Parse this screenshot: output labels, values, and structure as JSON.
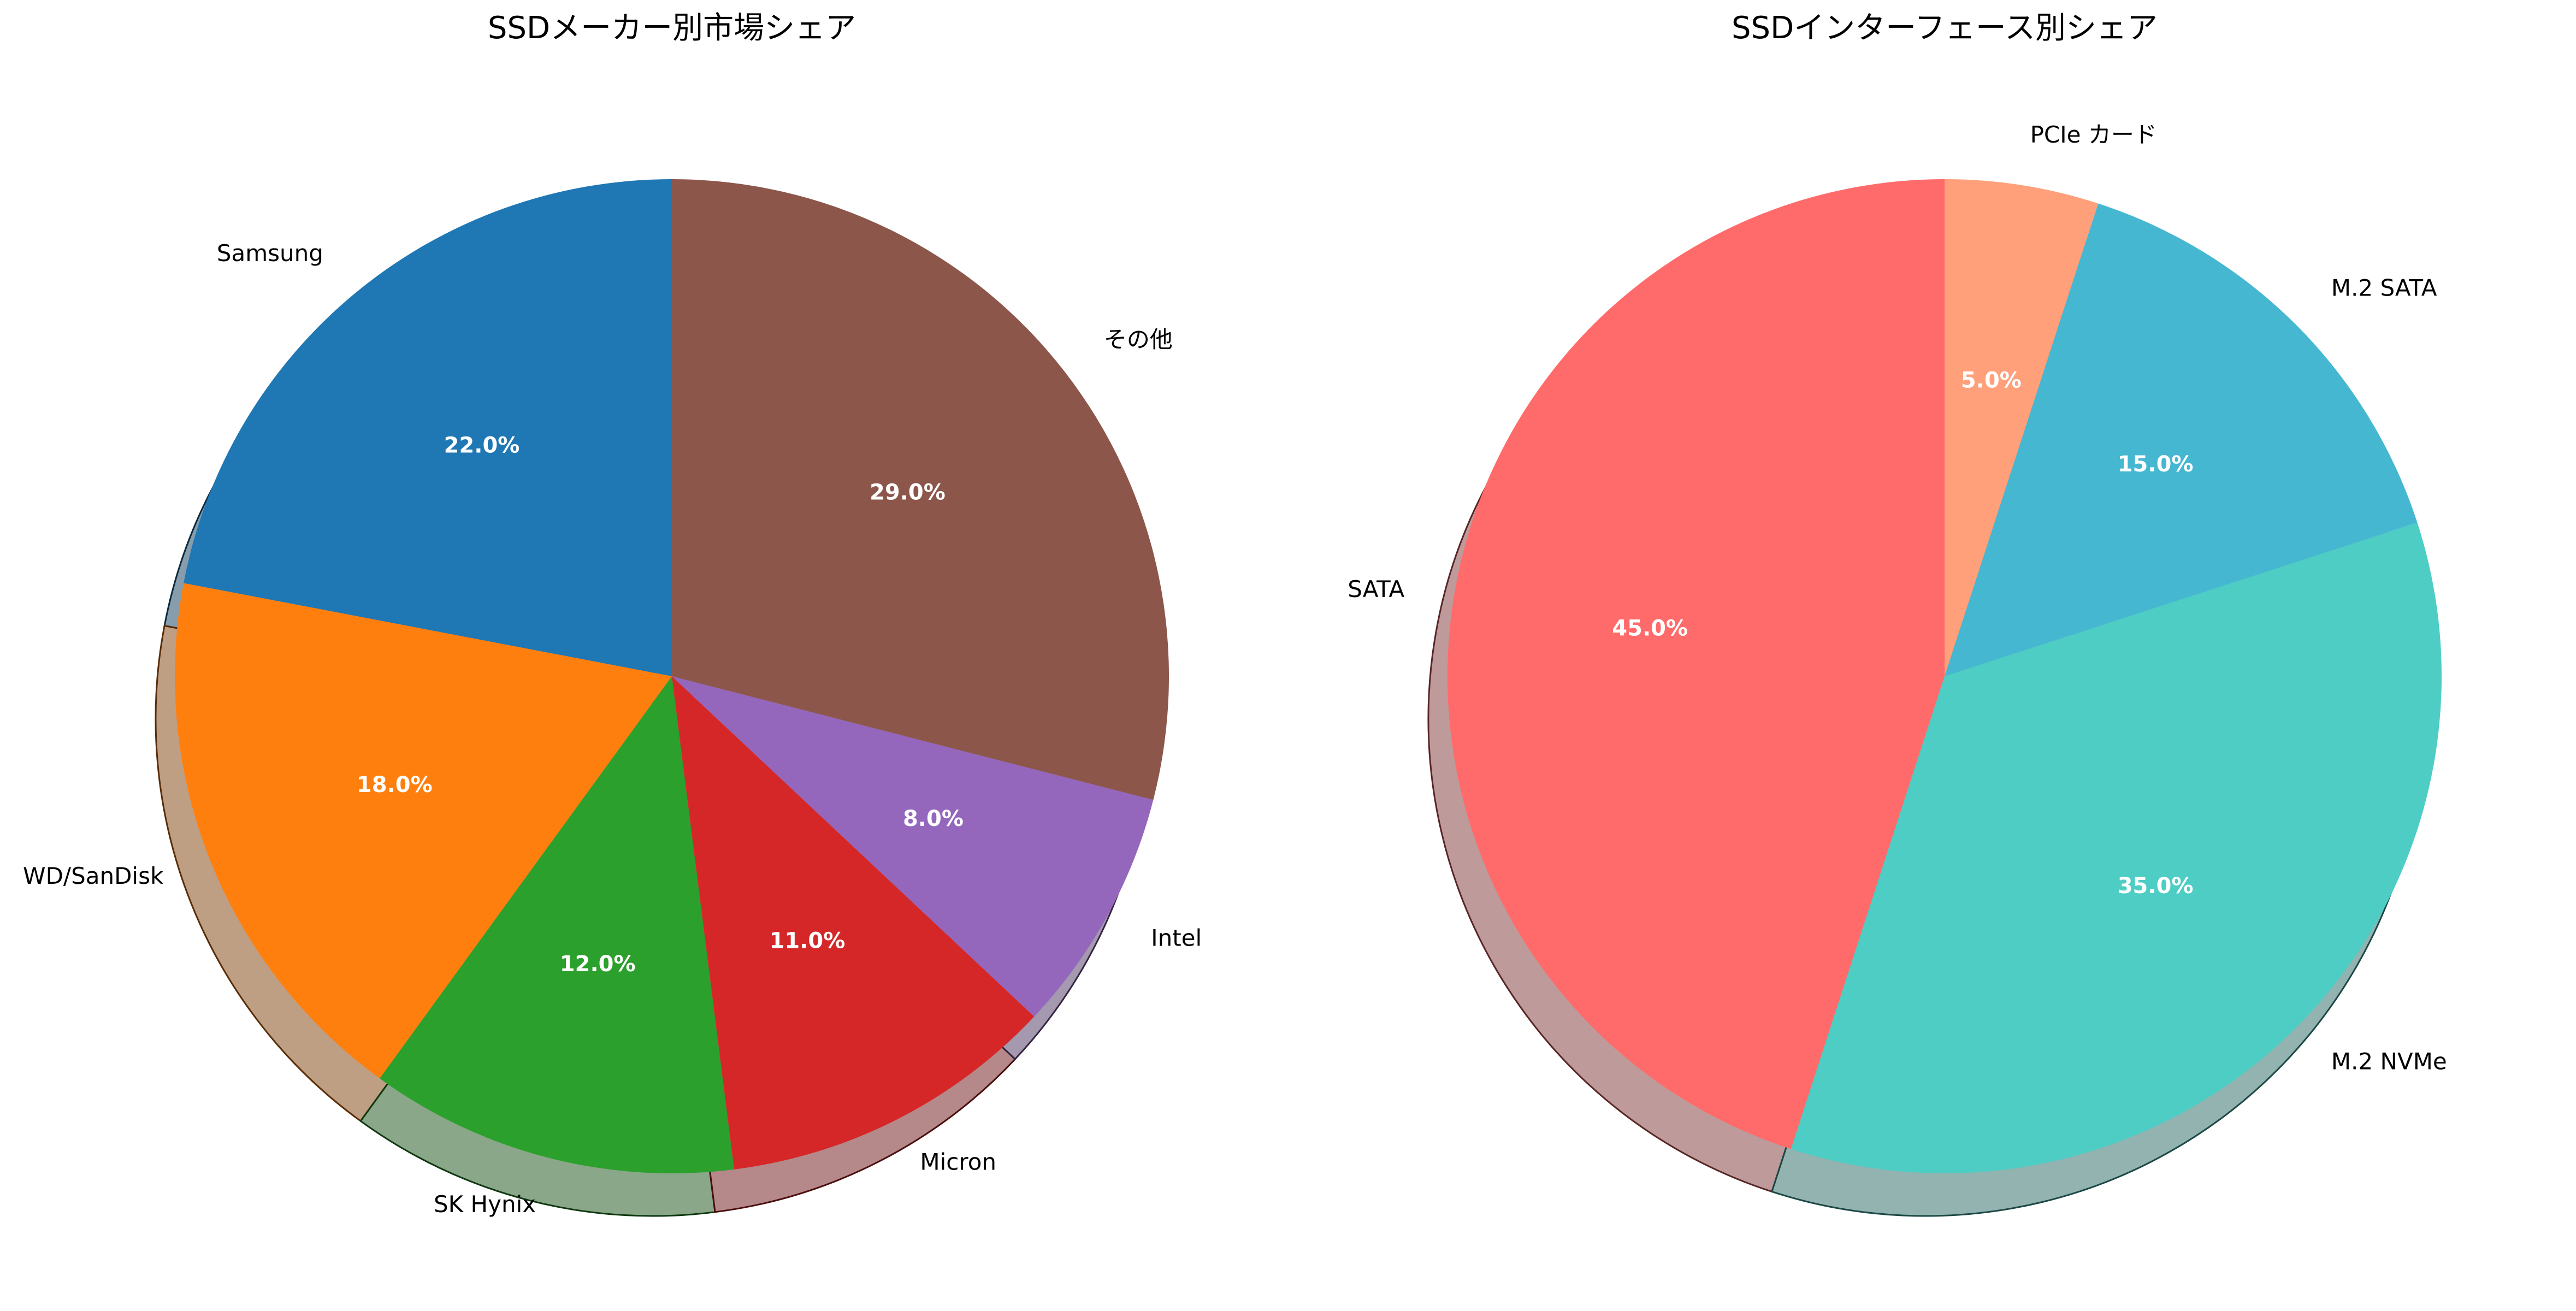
{
  "chart_data": [
    {
      "type": "pie",
      "title": "SSDメーカー別市場シェア",
      "start_angle": 90,
      "direction": "counterclockwise",
      "shadow": true,
      "slices": [
        {
          "label": "Samsung",
          "value": 22.0,
          "pct_label": "22.0%",
          "color": "#1f77b4"
        },
        {
          "label": "WD/SanDisk",
          "value": 18.0,
          "pct_label": "18.0%",
          "color": "#ff7f0e"
        },
        {
          "label": "SK Hynix",
          "value": 12.0,
          "pct_label": "12.0%",
          "color": "#2ca02c"
        },
        {
          "label": "Micron",
          "value": 11.0,
          "pct_label": "11.0%",
          "color": "#d62728"
        },
        {
          "label": "Intel",
          "value": 8.0,
          "pct_label": "8.0%",
          "color": "#9467bd"
        },
        {
          "label": "その他",
          "value": 29.0,
          "pct_label": "29.0%",
          "color": "#8c564b"
        }
      ]
    },
    {
      "type": "pie",
      "title": "SSDインターフェース別シェア",
      "start_angle": 90,
      "direction": "counterclockwise",
      "shadow": true,
      "slices": [
        {
          "label": "SATA",
          "value": 45.0,
          "pct_label": "45.0%",
          "color": "#ff6b6b"
        },
        {
          "label": "M.2 NVMe",
          "value": 35.0,
          "pct_label": "35.0%",
          "color": "#4ecdc4"
        },
        {
          "label": "M.2 SATA",
          "value": 15.0,
          "pct_label": "15.0%",
          "color": "#45b7d1"
        },
        {
          "label": "PCIe カード",
          "value": 5.0,
          "pct_label": "5.0%",
          "color": "#ffa07a"
        }
      ]
    }
  ]
}
